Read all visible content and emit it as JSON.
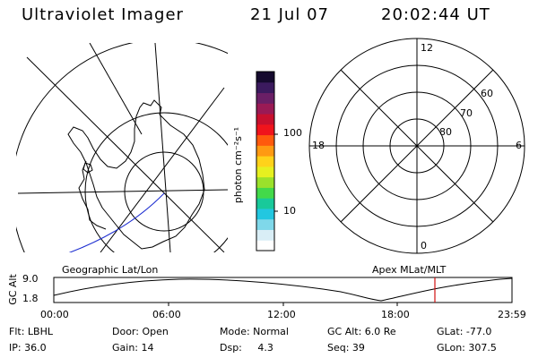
{
  "header": {
    "instrument": "Ultraviolet Imager",
    "date": "21 Jul 07",
    "time": "20:02:44 UT"
  },
  "colorbar": {
    "label": "photon cm⁻²s⁻¹",
    "ticks": [
      "100",
      "10"
    ],
    "scale": "log",
    "colors": [
      "#ffffff",
      "#d9eef6",
      "#7fd8ea",
      "#22c7e0",
      "#19c99a",
      "#43d94a",
      "#9be12b",
      "#e6f020",
      "#ffd21a",
      "#ff9a12",
      "#ff5a0d",
      "#f0141c",
      "#c8102e",
      "#9a1a55",
      "#6a1f66",
      "#3b1a5e",
      "#150a2e"
    ]
  },
  "left_panel": {
    "caption": "Geographic Lat/Lon"
  },
  "right_panel": {
    "caption": "Apex MLat/MLT",
    "mlt_labels": {
      "top": "12",
      "bottom": "0",
      "left": "18",
      "right": "6"
    },
    "mlat_labels": [
      "60",
      "70",
      "80"
    ]
  },
  "altitude_plot": {
    "ylabel": "GC Alt",
    "yticks": [
      "9.0",
      "1.8"
    ],
    "xticks": [
      "00:00",
      "06:00",
      "12:00",
      "18:00",
      "23:59"
    ],
    "current_time_marker": "20:02:44",
    "marker_color": "#d01010"
  },
  "info": {
    "filter": "Flt: LBHL",
    "door": "Door: Open",
    "mode": "Mode: Normal",
    "gc_alt": "GC Alt: 6.0 Re",
    "glat": "GLat: -77.0",
    "ip": "IP: 36.0",
    "gain": "Gain: 14",
    "dsp": "Dsp:     4.3",
    "seq": "Seq: 39",
    "glon": "GLon: 307.5"
  }
}
